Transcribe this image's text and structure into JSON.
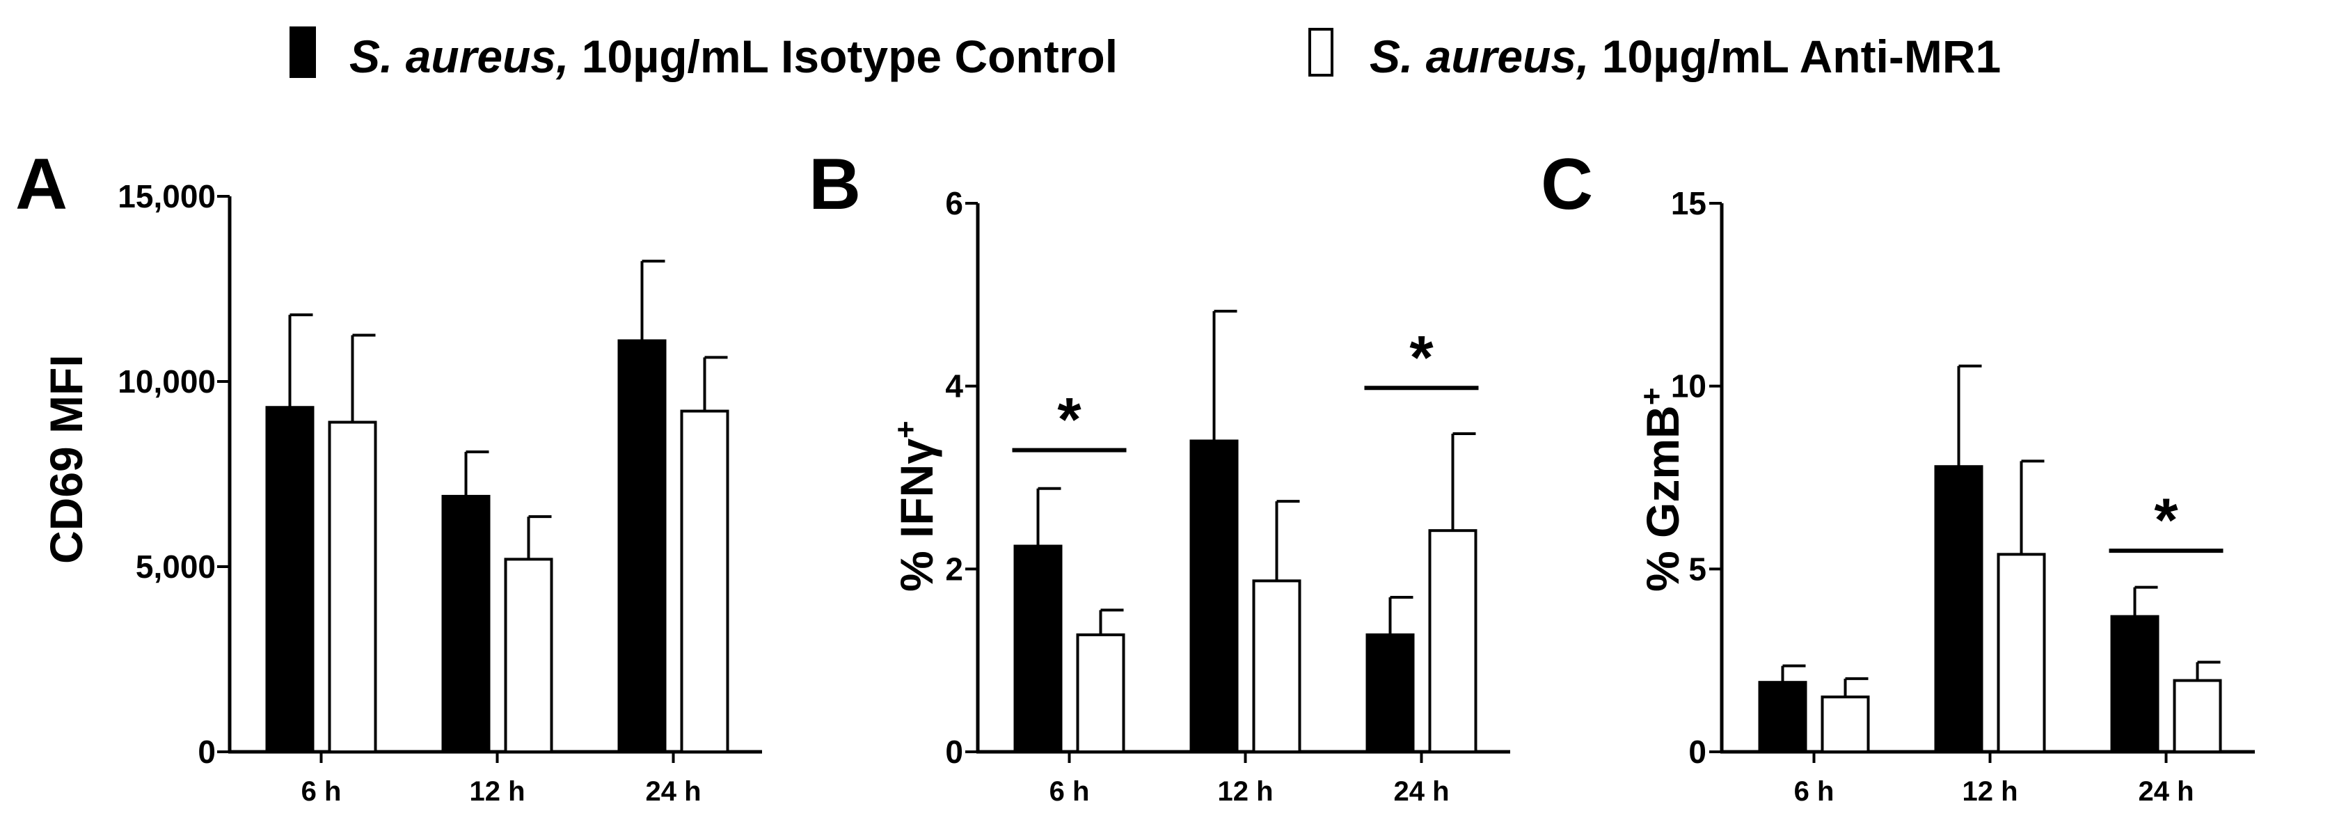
{
  "legend": [
    {
      "italic": "S. aureus,",
      "rest": " 10µg/mL Isotype Control",
      "color": "#000000"
    },
    {
      "italic": "S. aureus,",
      "rest": " 10µg/mL Anti-MR1",
      "color": "#ffffff"
    }
  ],
  "chart_data": [
    {
      "type": "bar",
      "panel": "A",
      "categories": [
        "6 h",
        "12 h",
        "24 h"
      ],
      "ylabel": "CD69  MFI",
      "ylabel_sup": "",
      "ylim": [
        0,
        15000
      ],
      "yticks": [
        0,
        5000,
        10000,
        15000
      ],
      "ytick_labels": [
        "0",
        "5,000",
        "10,000",
        "15,000"
      ],
      "series": [
        {
          "values": [
            9300,
            6900,
            11100
          ],
          "errors": [
            2500,
            1200,
            2150
          ]
        },
        {
          "values": [
            8900,
            5200,
            9200
          ],
          "errors": [
            2350,
            1150,
            1450
          ]
        }
      ],
      "significance": []
    },
    {
      "type": "bar",
      "panel": "B",
      "categories": [
        "6 h",
        "12 h",
        "24 h"
      ],
      "ylabel": "% IFNγ",
      "ylabel_sup": "+",
      "ylim": [
        0,
        6
      ],
      "yticks": [
        0,
        2,
        4,
        6
      ],
      "ytick_labels": [
        "0",
        "2",
        "4",
        "6"
      ],
      "series": [
        {
          "values": [
            2.25,
            3.4,
            1.28
          ],
          "errors": [
            0.63,
            1.42,
            0.41
          ]
        },
        {
          "values": [
            1.28,
            1.87,
            2.42
          ],
          "errors": [
            0.27,
            0.87,
            1.06
          ]
        }
      ],
      "significance": [
        {
          "category": 0,
          "level": 3.3,
          "label": "*"
        },
        {
          "category": 2,
          "level": 3.98,
          "label": "*"
        }
      ]
    },
    {
      "type": "bar",
      "panel": "C",
      "categories": [
        "6 h",
        "12 h",
        "24 h"
      ],
      "ylabel": "% GzmB",
      "ylabel_sup": "+",
      "ylim": [
        0,
        15
      ],
      "yticks": [
        0,
        5,
        10,
        15
      ],
      "ytick_labels": [
        "0",
        "5",
        "10",
        "15"
      ],
      "series": [
        {
          "values": [
            1.9,
            7.8,
            3.7
          ],
          "errors": [
            0.45,
            2.75,
            0.8
          ]
        },
        {
          "values": [
            1.5,
            5.4,
            1.95
          ],
          "errors": [
            0.5,
            2.55,
            0.5
          ]
        }
      ],
      "significance": [
        {
          "category": 2,
          "level": 5.5,
          "label": "*"
        }
      ]
    }
  ]
}
